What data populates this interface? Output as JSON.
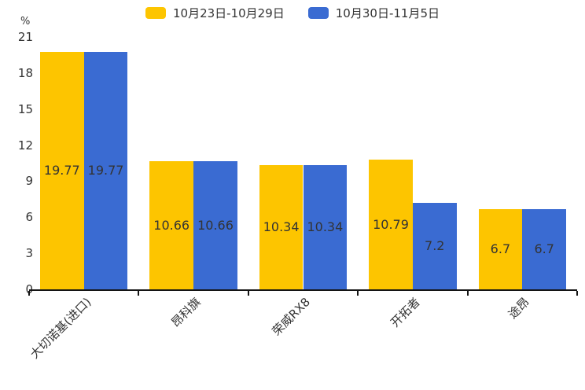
{
  "chart_data": {
    "type": "bar",
    "title": "",
    "categories": [
      "大切诺基(进口)",
      "昂科旗",
      "荣威RX8",
      "开拓者",
      "途昂"
    ],
    "series": [
      {
        "name": "10月23日-10月29日",
        "color": "#FDC500",
        "values": [
          19.77,
          10.66,
          10.34,
          10.79,
          6.7
        ]
      },
      {
        "name": "10月30日-11月5日",
        "color": "#3A6BD2",
        "values": [
          19.77,
          10.66,
          10.34,
          7.2,
          6.7
        ]
      }
    ],
    "ylabel": "%",
    "ylim": [
      0,
      21
    ],
    "yticks": [
      0,
      3,
      6,
      9,
      12,
      15,
      18,
      21
    ],
    "grid": false,
    "legend_position": "top",
    "value_labels": true
  },
  "colors": {
    "text": "#333333",
    "axis": "#141414",
    "background": "#ffffff"
  }
}
